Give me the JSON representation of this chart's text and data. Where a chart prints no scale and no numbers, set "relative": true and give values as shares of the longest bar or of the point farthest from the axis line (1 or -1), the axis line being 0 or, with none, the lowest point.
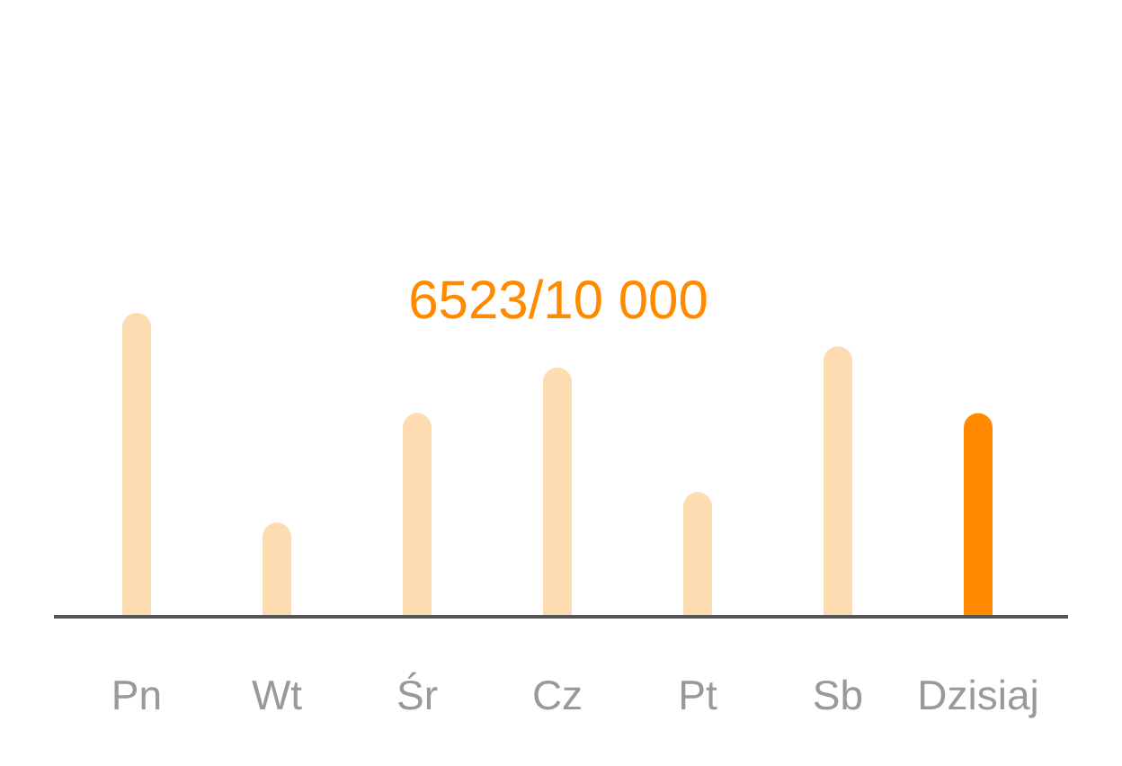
{
  "chart_data": {
    "type": "bar",
    "title": "6523/10 000",
    "categories": [
      "Pn",
      "Wt",
      "Śr",
      "Cz",
      "Pt",
      "Sb",
      "Dzisiaj"
    ],
    "values": [
      1,
      0.31,
      0.67,
      0.82,
      0.41,
      0.89,
      0.67
    ],
    "colors": [
      "#fddcb2",
      "#fddcb2",
      "#fddcb2",
      "#fddcb2",
      "#fddcb2",
      "#fddcb2",
      "#ff8a00"
    ],
    "relative": true
  }
}
